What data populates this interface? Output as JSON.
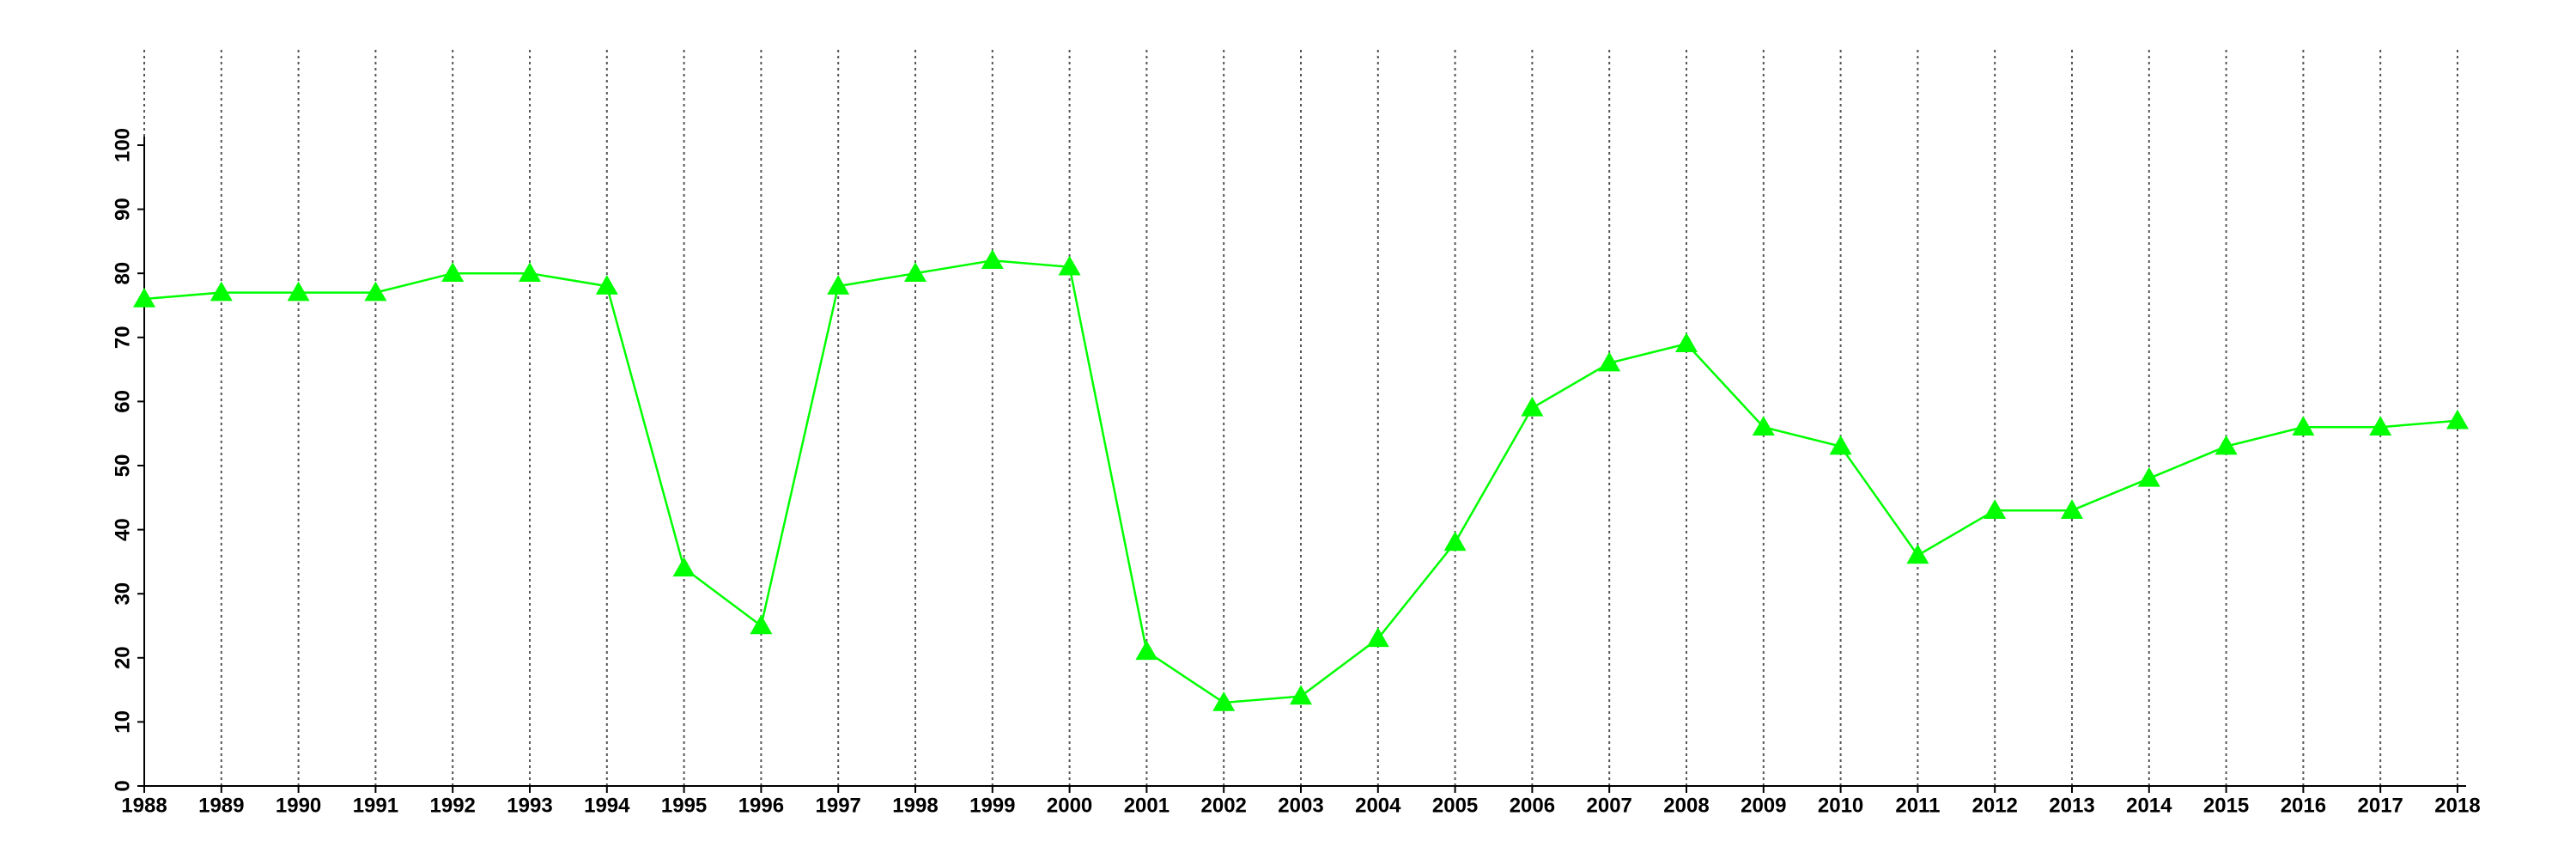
{
  "chart_data": {
    "type": "line",
    "x": [
      1988,
      1989,
      1990,
      1991,
      1992,
      1993,
      1994,
      1995,
      1996,
      1997,
      1998,
      1999,
      2000,
      2001,
      2002,
      2003,
      2004,
      2005,
      2006,
      2007,
      2008,
      2009,
      2010,
      2011,
      2012,
      2013,
      2014,
      2015,
      2016,
      2017,
      2018
    ],
    "series": [
      {
        "color": "#00ff00",
        "marker": "triangle",
        "values": [
          76,
          77,
          77,
          77,
          80,
          80,
          78,
          34,
          25,
          78,
          80,
          82,
          81,
          21,
          13,
          14,
          23,
          38,
          59,
          66,
          69,
          56,
          53,
          36,
          43,
          43,
          48,
          53,
          56,
          56,
          57
        ]
      }
    ],
    "xlim": [
      1988,
      2018
    ],
    "xticks": [
      1988,
      1989,
      1990,
      1991,
      1992,
      1993,
      1994,
      1995,
      1996,
      1997,
      1998,
      1999,
      2000,
      2001,
      2002,
      2003,
      2004,
      2005,
      2006,
      2007,
      2008,
      2009,
      2010,
      2011,
      2012,
      2013,
      2014,
      2015,
      2016,
      2017,
      2018
    ],
    "ylim": [
      0,
      100
    ],
    "yticks": [
      0,
      10,
      20,
      30,
      40,
      50,
      60,
      70,
      80,
      90,
      100
    ],
    "grid": "x"
  }
}
